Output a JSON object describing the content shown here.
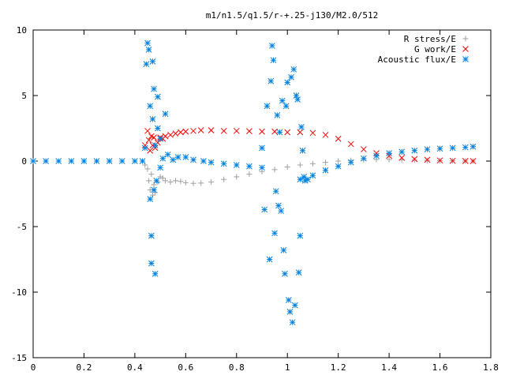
{
  "chart_data": {
    "type": "scatter",
    "title": "m1/n1.5/q1.5/r-+.25-j130/M2.0/512",
    "xlabel": "",
    "ylabel": "",
    "xlim": [
      0,
      1.8
    ],
    "ylim": [
      -15,
      10
    ],
    "xticks": [
      0,
      0.2,
      0.4,
      0.6,
      0.8,
      1,
      1.2,
      1.4,
      1.6,
      1.8
    ],
    "xtick_labels": [
      "0",
      "0.2",
      "0.4",
      "0.6",
      "0.8",
      "1",
      "1.2",
      "1.4",
      "1.6",
      "1.8"
    ],
    "yticks": [
      -15,
      -10,
      -5,
      0,
      5,
      10
    ],
    "ytick_labels": [
      "-15",
      "-10",
      "-5",
      "0",
      "5",
      "10"
    ],
    "grid": false,
    "legend_position": "top-right",
    "series": [
      {
        "name": "R stress/E",
        "marker": "plus",
        "color": "#a0a0a0",
        "points": [
          [
            0.44,
            -0.3
          ],
          [
            0.45,
            -0.6
          ],
          [
            0.455,
            -1.5
          ],
          [
            0.46,
            -2.2
          ],
          [
            0.465,
            -1.0
          ],
          [
            0.47,
            -2.6
          ],
          [
            0.475,
            -1.8
          ],
          [
            0.48,
            -2.4
          ],
          [
            0.49,
            -1.6
          ],
          [
            0.5,
            -1.2
          ],
          [
            0.51,
            -1.3
          ],
          [
            0.52,
            -1.5
          ],
          [
            0.54,
            -1.6
          ],
          [
            0.56,
            -1.5
          ],
          [
            0.58,
            -1.55
          ],
          [
            0.6,
            -1.65
          ],
          [
            0.63,
            -1.7
          ],
          [
            0.66,
            -1.68
          ],
          [
            0.7,
            -1.6
          ],
          [
            0.75,
            -1.4
          ],
          [
            0.8,
            -1.2
          ],
          [
            0.85,
            -1.0
          ],
          [
            0.9,
            -0.8
          ],
          [
            0.95,
            -0.65
          ],
          [
            1.0,
            -0.45
          ],
          [
            1.05,
            -0.3
          ],
          [
            1.1,
            -0.2
          ],
          [
            1.15,
            -0.1
          ],
          [
            1.2,
            0.0
          ],
          [
            1.25,
            0.05
          ],
          [
            1.3,
            0.1
          ],
          [
            1.35,
            0.12
          ],
          [
            1.4,
            0.12
          ],
          [
            1.45,
            0.1
          ],
          [
            1.5,
            0.08
          ],
          [
            1.55,
            0.05
          ],
          [
            1.6,
            0.03
          ],
          [
            1.65,
            0.02
          ],
          [
            1.7,
            0.01
          ],
          [
            1.73,
            0.0
          ]
        ]
      },
      {
        "name": "G work/E",
        "marker": "cross",
        "color": "#ff0000",
        "points": [
          [
            0.44,
            1.2
          ],
          [
            0.45,
            2.3
          ],
          [
            0.455,
            1.6
          ],
          [
            0.46,
            0.8
          ],
          [
            0.465,
            1.9
          ],
          [
            0.47,
            1.2
          ],
          [
            0.475,
            1.8
          ],
          [
            0.48,
            1.0
          ],
          [
            0.49,
            1.4
          ],
          [
            0.5,
            1.8
          ],
          [
            0.51,
            1.7
          ],
          [
            0.52,
            1.9
          ],
          [
            0.54,
            2.0
          ],
          [
            0.56,
            2.1
          ],
          [
            0.58,
            2.2
          ],
          [
            0.6,
            2.25
          ],
          [
            0.63,
            2.3
          ],
          [
            0.66,
            2.35
          ],
          [
            0.7,
            2.35
          ],
          [
            0.75,
            2.3
          ],
          [
            0.8,
            2.3
          ],
          [
            0.85,
            2.28
          ],
          [
            0.9,
            2.25
          ],
          [
            0.95,
            2.25
          ],
          [
            1.0,
            2.2
          ],
          [
            1.05,
            2.2
          ],
          [
            1.1,
            2.15
          ],
          [
            1.15,
            2.0
          ],
          [
            1.2,
            1.7
          ],
          [
            1.25,
            1.3
          ],
          [
            1.3,
            0.9
          ],
          [
            1.35,
            0.6
          ],
          [
            1.4,
            0.4
          ],
          [
            1.45,
            0.25
          ],
          [
            1.5,
            0.15
          ],
          [
            1.55,
            0.1
          ],
          [
            1.6,
            0.05
          ],
          [
            1.65,
            0.02
          ],
          [
            1.7,
            0.01
          ],
          [
            1.73,
            0.0
          ]
        ]
      },
      {
        "name": "Acoustic flux/E",
        "marker": "star",
        "color": "#0080e0",
        "points": [
          [
            0.0,
            0.0
          ],
          [
            0.05,
            0.0
          ],
          [
            0.1,
            0.0
          ],
          [
            0.15,
            0.0
          ],
          [
            0.2,
            0.0
          ],
          [
            0.25,
            0.0
          ],
          [
            0.3,
            0.0
          ],
          [
            0.35,
            0.0
          ],
          [
            0.4,
            0.0
          ],
          [
            0.43,
            0.0
          ],
          [
            0.44,
            1.0
          ],
          [
            0.445,
            7.4
          ],
          [
            0.45,
            9.0
          ],
          [
            0.455,
            8.5
          ],
          [
            0.46,
            4.2
          ],
          [
            0.46,
            -2.9
          ],
          [
            0.465,
            -5.7
          ],
          [
            0.465,
            -7.8
          ],
          [
            0.47,
            7.6
          ],
          [
            0.47,
            3.2
          ],
          [
            0.475,
            5.5
          ],
          [
            0.475,
            -2.2
          ],
          [
            0.48,
            -8.6
          ],
          [
            0.48,
            1.2
          ],
          [
            0.485,
            -1.5
          ],
          [
            0.49,
            4.9
          ],
          [
            0.49,
            2.5
          ],
          [
            0.5,
            1.7
          ],
          [
            0.5,
            -0.5
          ],
          [
            0.51,
            0.2
          ],
          [
            0.52,
            3.6
          ],
          [
            0.53,
            0.5
          ],
          [
            0.55,
            0.1
          ],
          [
            0.57,
            0.3
          ],
          [
            0.6,
            0.3
          ],
          [
            0.63,
            0.1
          ],
          [
            0.67,
            0.0
          ],
          [
            0.7,
            -0.1
          ],
          [
            0.75,
            -0.2
          ],
          [
            0.8,
            -0.3
          ],
          [
            0.85,
            -0.4
          ],
          [
            0.9,
            -0.5
          ],
          [
            0.9,
            1.0
          ],
          [
            0.91,
            -3.7
          ],
          [
            0.92,
            4.2
          ],
          [
            0.93,
            -7.5
          ],
          [
            0.935,
            6.1
          ],
          [
            0.94,
            8.8
          ],
          [
            0.945,
            7.7
          ],
          [
            0.95,
            -5.5
          ],
          [
            0.955,
            -2.3
          ],
          [
            0.96,
            3.5
          ],
          [
            0.965,
            -3.4
          ],
          [
            0.97,
            2.2
          ],
          [
            0.975,
            -3.8
          ],
          [
            0.98,
            4.6
          ],
          [
            0.985,
            -6.8
          ],
          [
            0.99,
            -8.6
          ],
          [
            0.995,
            4.2
          ],
          [
            1.0,
            6.0
          ],
          [
            1.005,
            -10.6
          ],
          [
            1.01,
            -11.5
          ],
          [
            1.015,
            6.4
          ],
          [
            1.02,
            -12.3
          ],
          [
            1.025,
            7.0
          ],
          [
            1.03,
            -11.0
          ],
          [
            1.035,
            5.0
          ],
          [
            1.04,
            4.7
          ],
          [
            1.045,
            -8.5
          ],
          [
            1.05,
            -5.7
          ],
          [
            1.05,
            -1.4
          ],
          [
            1.055,
            2.6
          ],
          [
            1.06,
            0.8
          ],
          [
            1.065,
            -1.2
          ],
          [
            1.07,
            -1.5
          ],
          [
            1.08,
            -1.4
          ],
          [
            1.1,
            -1.1
          ],
          [
            1.15,
            -0.7
          ],
          [
            1.2,
            -0.4
          ],
          [
            1.25,
            -0.1
          ],
          [
            1.3,
            0.2
          ],
          [
            1.35,
            0.4
          ],
          [
            1.4,
            0.6
          ],
          [
            1.45,
            0.7
          ],
          [
            1.5,
            0.8
          ],
          [
            1.55,
            0.9
          ],
          [
            1.6,
            0.95
          ],
          [
            1.65,
            1.0
          ],
          [
            1.7,
            1.05
          ],
          [
            1.73,
            1.1
          ]
        ]
      }
    ]
  }
}
